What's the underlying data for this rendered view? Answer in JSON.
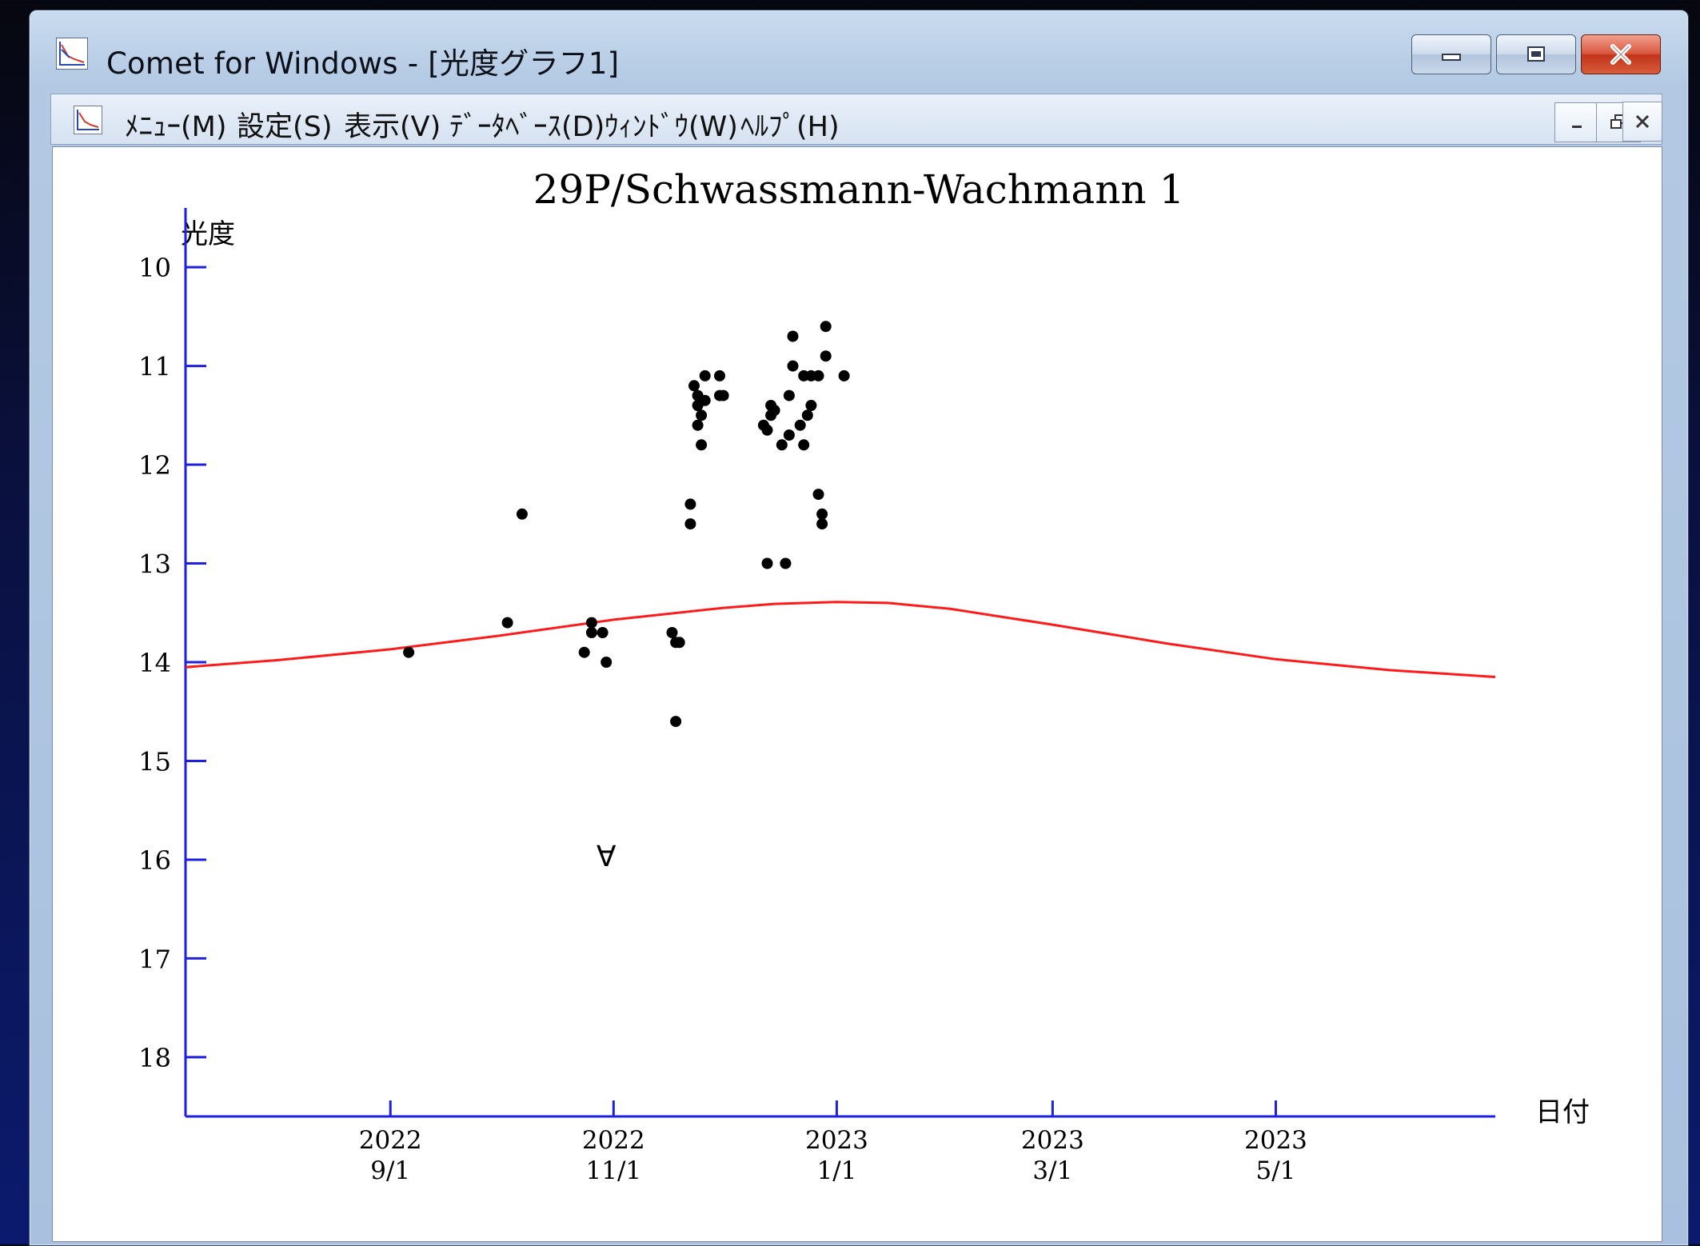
{
  "window": {
    "title": "Comet for Windows - [光度グラフ1]",
    "controls": {
      "minimize": "minimize-icon",
      "maximize": "maximize-icon",
      "close": "close-icon"
    }
  },
  "menubar": {
    "items": [
      "ﾒﾆｭｰ(M)",
      "設定(S)",
      "表示(V)",
      "ﾃﾞｰﾀﾍﾞｰｽ(D)",
      "ｳｨﾝﾄﾞｳ(W)",
      "ﾍﾙﾌﾟ(H)"
    ]
  },
  "colors": {
    "axis": "#1f1fe0",
    "prediction": "#ff1a1a",
    "points": "#000000"
  },
  "chart_data": {
    "type": "scatter",
    "title": "29P/Schwassmann-Wachmann 1",
    "ylabel": "光度",
    "xlabel": "日付",
    "y_inverted": true,
    "ylim": [
      9.4,
      18.6
    ],
    "xlim": [
      "2022-07-07",
      "2023-06-30"
    ],
    "y_ticks": [
      10,
      11,
      12,
      13,
      14,
      15,
      16,
      17,
      18
    ],
    "x_ticks": [
      {
        "date": "2022-09-01",
        "year": "2022",
        "md": "9/1"
      },
      {
        "date": "2022-11-01",
        "year": "2022",
        "md": "11/1"
      },
      {
        "date": "2023-01-01",
        "year": "2023",
        "md": "1/1"
      },
      {
        "date": "2023-03-01",
        "year": "2023",
        "md": "3/1"
      },
      {
        "date": "2023-05-01",
        "year": "2023",
        "md": "5/1"
      }
    ],
    "series": [
      {
        "kind": "observations",
        "points": [
          [
            "2022-09-06",
            13.9
          ],
          [
            "2022-10-03",
            13.6
          ],
          [
            "2022-10-07",
            12.5
          ],
          [
            "2022-10-24",
            13.9
          ],
          [
            "2022-10-26",
            13.6
          ],
          [
            "2022-10-26",
            13.7
          ],
          [
            "2022-10-29",
            13.7
          ],
          [
            "2022-10-30",
            14.0
          ],
          [
            "2022-11-17",
            13.7
          ],
          [
            "2022-11-18",
            14.6
          ],
          [
            "2022-11-18",
            13.8
          ],
          [
            "2022-11-19",
            13.8
          ],
          [
            "2022-11-22",
            12.4
          ],
          [
            "2022-11-22",
            12.6
          ],
          [
            "2022-11-23",
            11.2
          ],
          [
            "2022-11-24",
            11.3
          ],
          [
            "2022-11-24",
            11.4
          ],
          [
            "2022-11-24",
            11.6
          ],
          [
            "2022-11-25",
            11.5
          ],
          [
            "2022-11-25",
            11.8
          ],
          [
            "2022-11-26",
            11.1
          ],
          [
            "2022-11-26",
            11.35
          ],
          [
            "2022-11-30",
            11.1
          ],
          [
            "2022-11-30",
            11.3
          ],
          [
            "2022-12-01",
            11.3
          ],
          [
            "2022-12-12",
            11.6
          ],
          [
            "2022-12-13",
            11.65
          ],
          [
            "2022-12-13",
            13.0
          ],
          [
            "2022-12-14",
            11.4
          ],
          [
            "2022-12-14",
            11.5
          ],
          [
            "2022-12-15",
            11.45
          ],
          [
            "2022-12-17",
            11.8
          ],
          [
            "2022-12-18",
            13.0
          ],
          [
            "2022-12-19",
            11.3
          ],
          [
            "2022-12-19",
            11.7
          ],
          [
            "2022-12-20",
            10.7
          ],
          [
            "2022-12-20",
            11.0
          ],
          [
            "2022-12-22",
            11.6
          ],
          [
            "2022-12-23",
            11.1
          ],
          [
            "2022-12-23",
            11.8
          ],
          [
            "2022-12-24",
            11.5
          ],
          [
            "2022-12-25",
            11.4
          ],
          [
            "2022-12-25",
            11.1
          ],
          [
            "2022-12-27",
            11.1
          ],
          [
            "2022-12-27",
            12.3
          ],
          [
            "2022-12-28",
            12.6
          ],
          [
            "2022-12-28",
            12.5
          ],
          [
            "2022-12-29",
            10.6
          ],
          [
            "2022-12-29",
            10.9
          ],
          [
            "2023-01-03",
            11.1
          ]
        ]
      },
      {
        "kind": "upper_limit",
        "marker": "∀",
        "points": [
          [
            "2022-10-30",
            15.95
          ]
        ]
      },
      {
        "kind": "prediction",
        "points": [
          [
            "2022-07-07",
            14.05
          ],
          [
            "2022-08-01",
            13.98
          ],
          [
            "2022-09-01",
            13.87
          ],
          [
            "2022-10-01",
            13.73
          ],
          [
            "2022-11-01",
            13.57
          ],
          [
            "2022-12-01",
            13.45
          ],
          [
            "2022-12-15",
            13.41
          ],
          [
            "2023-01-01",
            13.39
          ],
          [
            "2023-01-15",
            13.4
          ],
          [
            "2023-02-01",
            13.46
          ],
          [
            "2023-03-01",
            13.62
          ],
          [
            "2023-04-01",
            13.81
          ],
          [
            "2023-05-01",
            13.97
          ],
          [
            "2023-06-01",
            14.08
          ],
          [
            "2023-06-30",
            14.15
          ]
        ]
      }
    ]
  }
}
